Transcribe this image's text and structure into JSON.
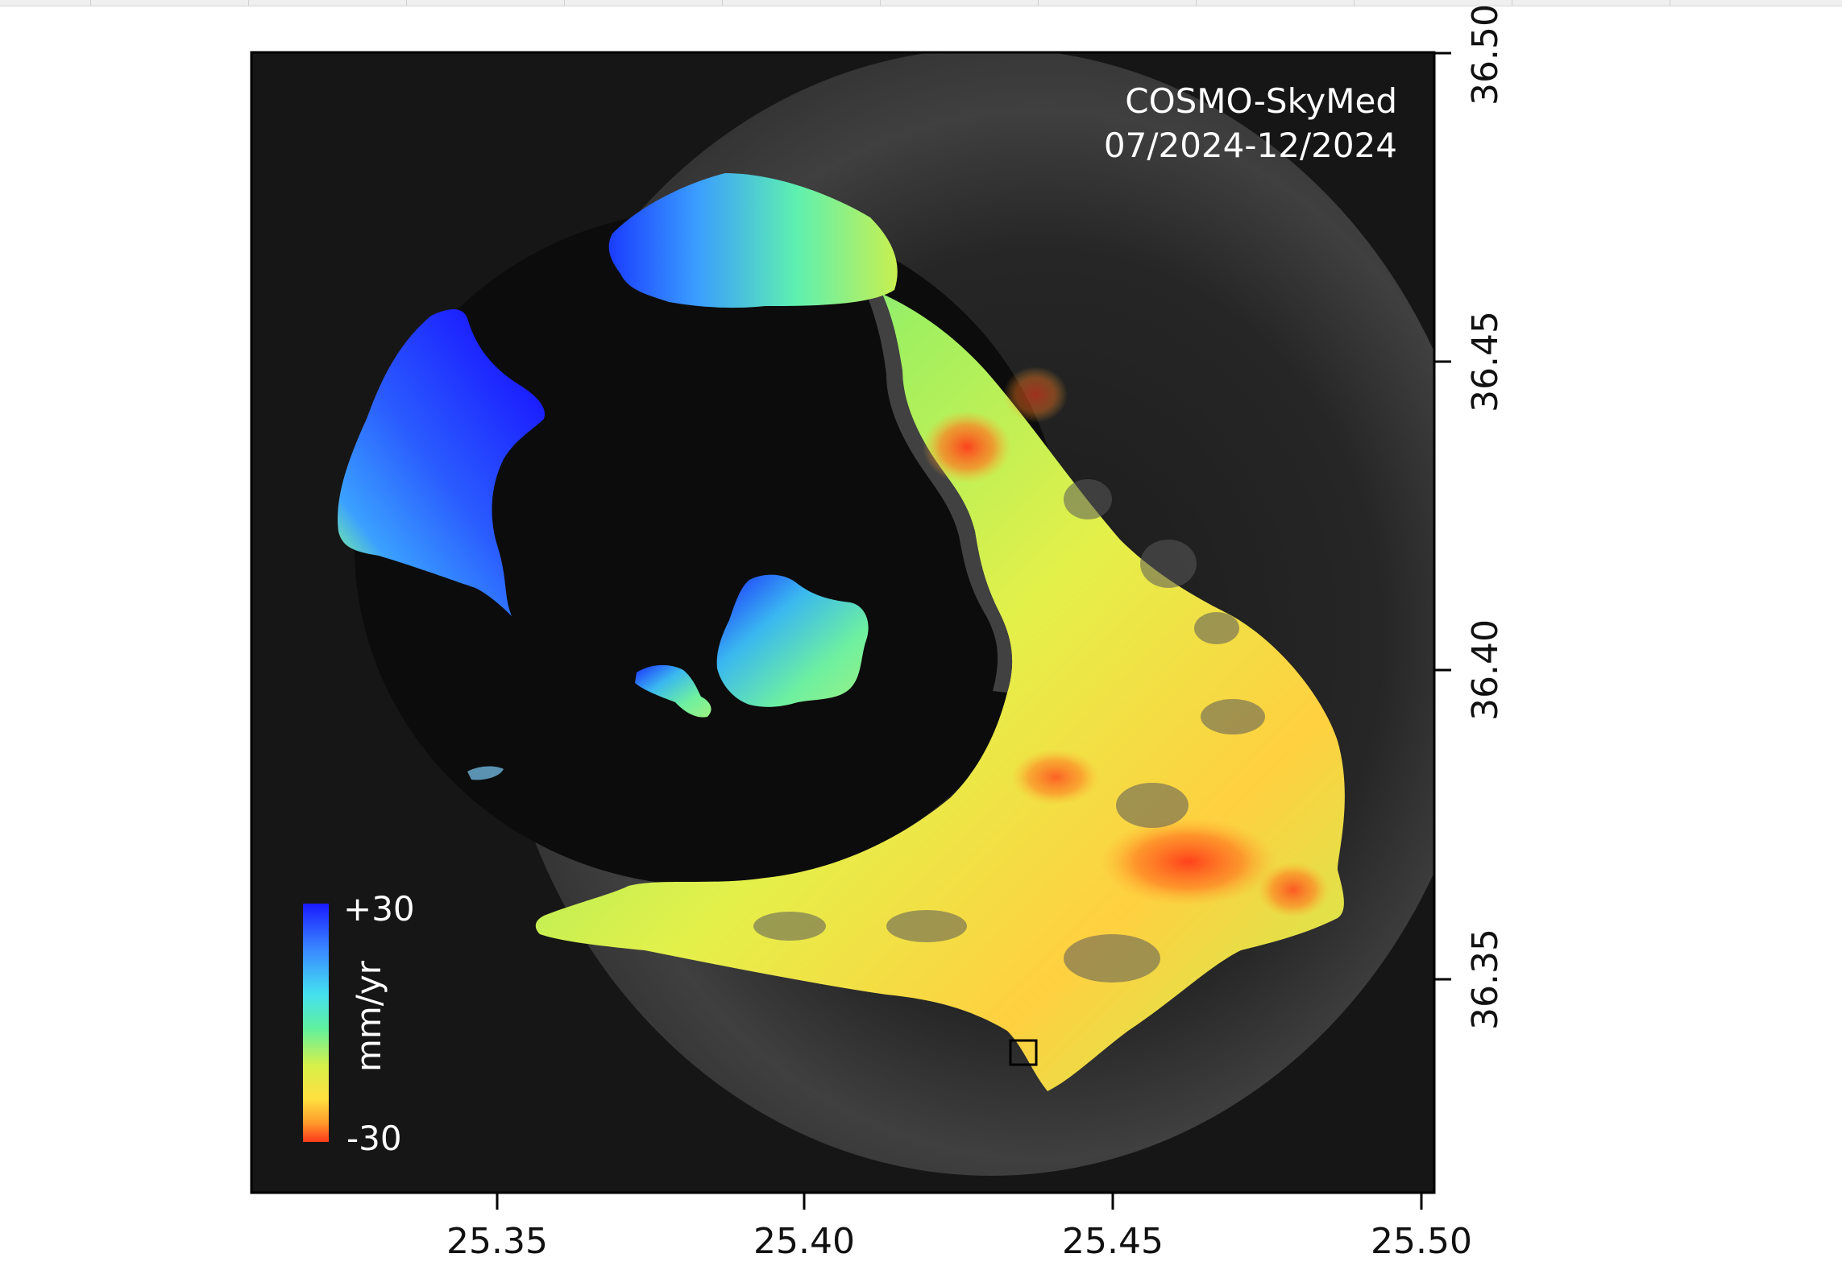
{
  "map": {
    "sensor": "COSMO-SkyMed",
    "period": "07/2024-12/2024",
    "legend": {
      "max_label": "+30",
      "min_label": "-30",
      "unit_label": "mm/yr",
      "colors": [
        "#1a1aff",
        "#3a8cff",
        "#45e0f0",
        "#5ef0a0",
        "#d8f04a",
        "#ffe040",
        "#ff9a2a",
        "#ff3a1a"
      ]
    },
    "x_axis": {
      "ticks": [
        "25.35",
        "25.40",
        "25.45",
        "25.50"
      ]
    },
    "y_axis": {
      "ticks": [
        "36.35",
        "36.40",
        "36.45",
        "36.50"
      ]
    },
    "colors": {
      "frame": "#000000",
      "sea": "#141414",
      "rock": "#5a5a5a"
    }
  }
}
